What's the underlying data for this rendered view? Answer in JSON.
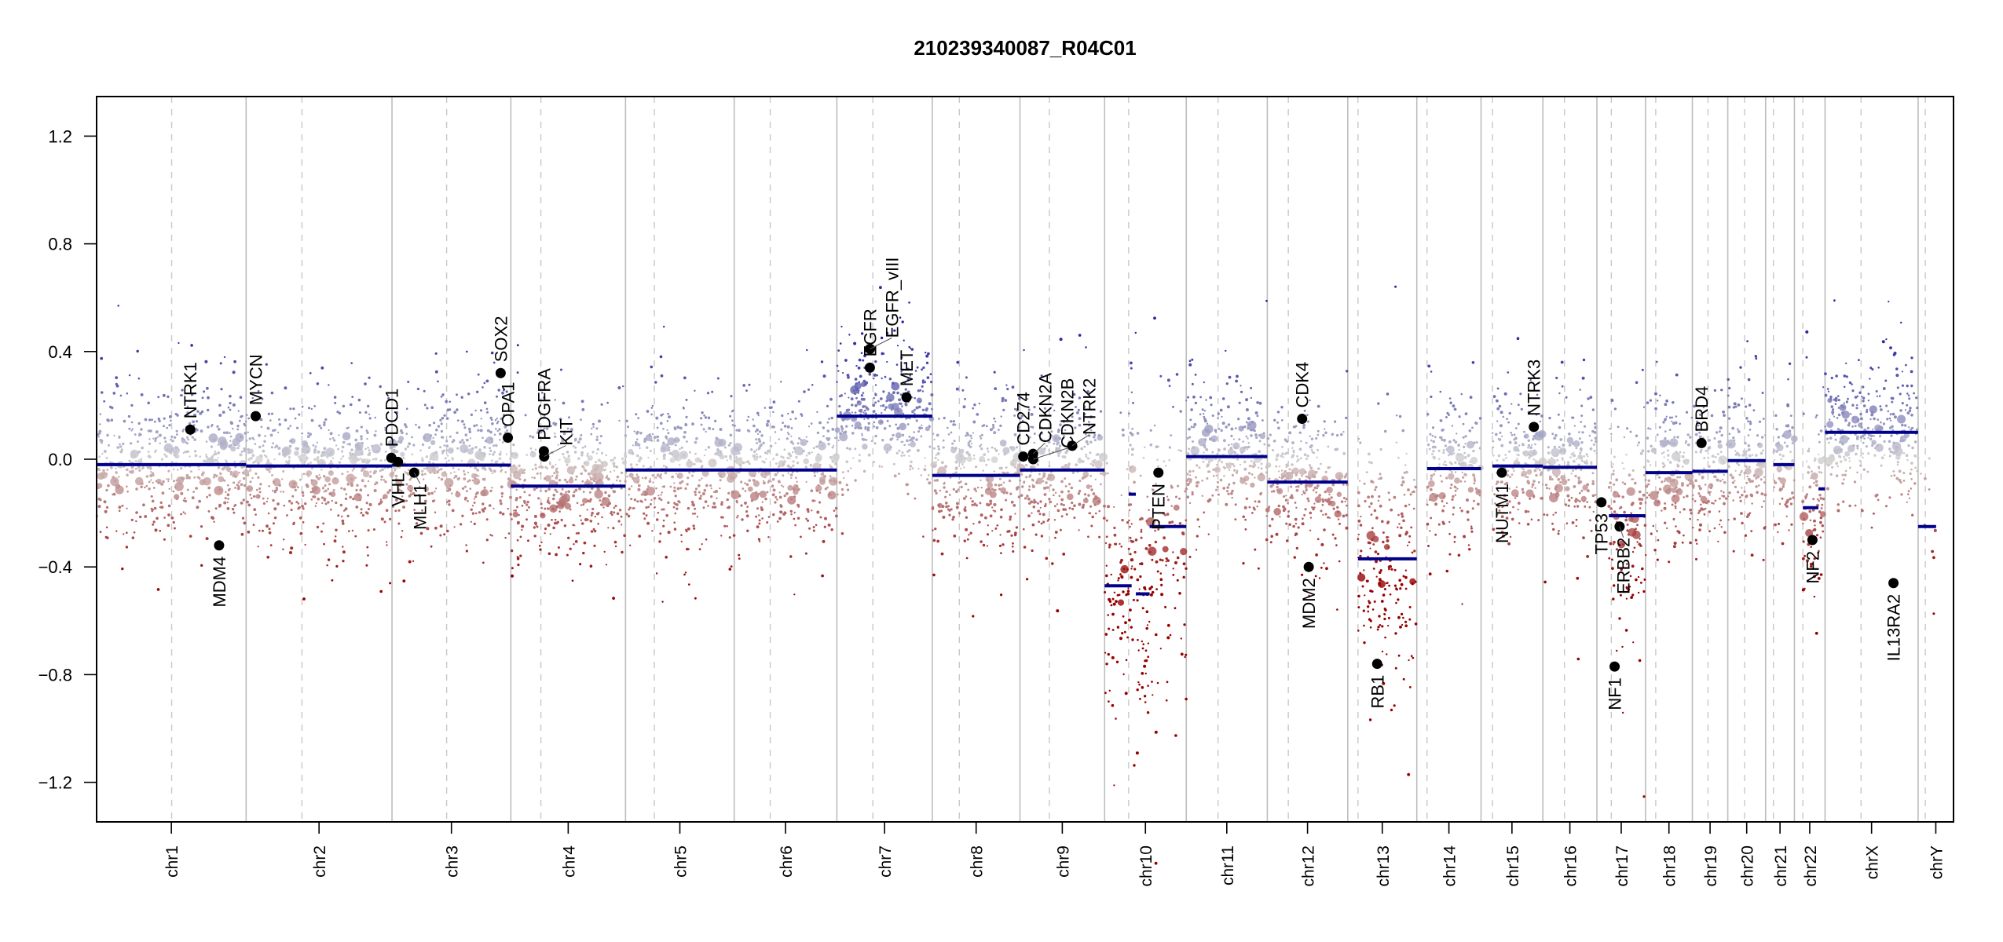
{
  "chart_data": {
    "type": "scatter",
    "title": "210239340087_R04C01",
    "xlabel": "",
    "ylabel": "",
    "ylim": [
      -1.35,
      1.35
    ],
    "yticks": [
      "-1.2",
      "-0.8",
      "-0.4",
      "0.0",
      "0.4",
      "0.8",
      "1.2"
    ],
    "grid": "chromosome boundaries (solid) and centromeres (dashed)",
    "colors": {
      "gain": "#3a3aa6",
      "neutral": "#d3d3d3",
      "loss": "#a00000",
      "segment": "#00008b",
      "gene": "#000000"
    },
    "chromosomes": [
      {
        "name": "chr1",
        "length": 249,
        "centromere": 125
      },
      {
        "name": "chr2",
        "length": 243,
        "centromere": 93
      },
      {
        "name": "chr3",
        "length": 198,
        "centromere": 91
      },
      {
        "name": "chr4",
        "length": 191,
        "centromere": 50
      },
      {
        "name": "chr5",
        "length": 181,
        "centromere": 48
      },
      {
        "name": "chr6",
        "length": 171,
        "centromere": 60
      },
      {
        "name": "chr7",
        "length": 159,
        "centromere": 60
      },
      {
        "name": "chr8",
        "length": 146,
        "centromere": 45
      },
      {
        "name": "chr9",
        "length": 141,
        "centromere": 49
      },
      {
        "name": "chr10",
        "length": 136,
        "centromere": 40
      },
      {
        "name": "chr11",
        "length": 135,
        "centromere": 53
      },
      {
        "name": "chr12",
        "length": 134,
        "centromere": 35
      },
      {
        "name": "chr13",
        "length": 115,
        "centromere": 17
      },
      {
        "name": "chr14",
        "length": 107,
        "centromere": 17
      },
      {
        "name": "chr15",
        "length": 103,
        "centromere": 19
      },
      {
        "name": "chr16",
        "length": 90,
        "centromere": 36
      },
      {
        "name": "chr17",
        "length": 81,
        "centromere": 24
      },
      {
        "name": "chr18",
        "length": 78,
        "centromere": 17
      },
      {
        "name": "chr19",
        "length": 59,
        "centromere": 26
      },
      {
        "name": "chr20",
        "length": 63,
        "centromere": 28
      },
      {
        "name": "chr21",
        "length": 48,
        "centromere": 13
      },
      {
        "name": "chr22",
        "length": 51,
        "centromere": 14
      },
      {
        "name": "chrX",
        "length": 155,
        "centromere": 60
      },
      {
        "name": "chrY",
        "length": 59,
        "centromere": 12
      }
    ],
    "segments": [
      {
        "chr": "chr1",
        "start": 0,
        "end": 249,
        "value": -0.02
      },
      {
        "chr": "chr2",
        "start": 0,
        "end": 243,
        "value": -0.025
      },
      {
        "chr": "chr3",
        "start": 0,
        "end": 198,
        "value": -0.022
      },
      {
        "chr": "chr4",
        "start": 0,
        "end": 191,
        "value": -0.1
      },
      {
        "chr": "chr5",
        "start": 0,
        "end": 181,
        "value": -0.04
      },
      {
        "chr": "chr6",
        "start": 0,
        "end": 171,
        "value": -0.04
      },
      {
        "chr": "chr7",
        "start": 0,
        "end": 159,
        "value": 0.16
      },
      {
        "chr": "chr8",
        "start": 0,
        "end": 146,
        "value": -0.06
      },
      {
        "chr": "chr9",
        "start": 0,
        "end": 141,
        "value": -0.04
      },
      {
        "chr": "chr10",
        "start": 0,
        "end": 45,
        "value": -0.47
      },
      {
        "chr": "chr10",
        "start": 40,
        "end": 52,
        "value": -0.13
      },
      {
        "chr": "chr10",
        "start": 52,
        "end": 75,
        "value": -0.5
      },
      {
        "chr": "chr10",
        "start": 75,
        "end": 136,
        "value": -0.25
      },
      {
        "chr": "chr11",
        "start": 0,
        "end": 135,
        "value": 0.01
      },
      {
        "chr": "chr12",
        "start": 0,
        "end": 134,
        "value": -0.085
      },
      {
        "chr": "chr13",
        "start": 17,
        "end": 115,
        "value": -0.37
      },
      {
        "chr": "chr14",
        "start": 17,
        "end": 107,
        "value": -0.035
      },
      {
        "chr": "chr15",
        "start": 19,
        "end": 103,
        "value": -0.025
      },
      {
        "chr": "chr16",
        "start": 0,
        "end": 90,
        "value": -0.03
      },
      {
        "chr": "chr17",
        "start": 20,
        "end": 81,
        "value": -0.21
      },
      {
        "chr": "chr18",
        "start": 0,
        "end": 78,
        "value": -0.05
      },
      {
        "chr": "chr19",
        "start": 0,
        "end": 59,
        "value": -0.045
      },
      {
        "chr": "chr20",
        "start": 0,
        "end": 63,
        "value": -0.005
      },
      {
        "chr": "chr21",
        "start": 13,
        "end": 48,
        "value": -0.02
      },
      {
        "chr": "chr22",
        "start": 14,
        "end": 40,
        "value": -0.18
      },
      {
        "chr": "chr22",
        "start": 40,
        "end": 51,
        "value": -0.11
      },
      {
        "chr": "chrX",
        "start": 0,
        "end": 155,
        "value": 0.1
      },
      {
        "chr": "chrY",
        "start": 0,
        "end": 30,
        "value": -0.25
      }
    ],
    "genes": [
      {
        "name": "NTRK1",
        "chr": "chr1",
        "pos": 156,
        "value": 0.11
      },
      {
        "name": "MDM4",
        "chr": "chr1",
        "pos": 204,
        "value": -0.32
      },
      {
        "name": "MYCN",
        "chr": "chr2",
        "pos": 16,
        "value": 0.16
      },
      {
        "name": "PDCD1",
        "chr": "chr2",
        "pos": 242,
        "value": 0.005
      },
      {
        "name": "VHL",
        "chr": "chr3",
        "pos": 10,
        "value": -0.01
      },
      {
        "name": "MLH1",
        "chr": "chr3",
        "pos": 37,
        "value": -0.05
      },
      {
        "name": "SOX2",
        "chr": "chr3",
        "pos": 181,
        "value": 0.32
      },
      {
        "name": "OPA1",
        "chr": "chr3",
        "pos": 193,
        "value": 0.08
      },
      {
        "name": "PDGFRA",
        "chr": "chr4",
        "pos": 55,
        "value": 0.03
      },
      {
        "name": "KIT",
        "chr": "chr4",
        "pos": 55.5,
        "value": 0.01
      },
      {
        "name": "EGFR",
        "chr": "chr7",
        "pos": 55,
        "value": 0.34
      },
      {
        "name": "EGFR_vIII",
        "chr": "chr7",
        "pos": 55.2,
        "value": 0.41
      },
      {
        "name": "MET",
        "chr": "chr7",
        "pos": 116,
        "value": 0.23
      },
      {
        "name": "CD274",
        "chr": "chr9",
        "pos": 5.5,
        "value": 0.01
      },
      {
        "name": "CDKN2A",
        "chr": "chr9",
        "pos": 21.9,
        "value": 0.02
      },
      {
        "name": "CDKN2B",
        "chr": "chr9",
        "pos": 22.0,
        "value": 0.0
      },
      {
        "name": "NTRK2",
        "chr": "chr9",
        "pos": 87,
        "value": 0.05
      },
      {
        "name": "PTEN",
        "chr": "chr10",
        "pos": 89.6,
        "value": -0.05
      },
      {
        "name": "CDK4",
        "chr": "chr12",
        "pos": 58,
        "value": 0.15
      },
      {
        "name": "MDM2",
        "chr": "chr12",
        "pos": 69,
        "value": -0.4
      },
      {
        "name": "RB1",
        "chr": "chr13",
        "pos": 49,
        "value": -0.76
      },
      {
        "name": "NUTM1",
        "chr": "chr15",
        "pos": 34.6,
        "value": -0.05
      },
      {
        "name": "NTRK3",
        "chr": "chr15",
        "pos": 88,
        "value": 0.12
      },
      {
        "name": "TP53",
        "chr": "chr17",
        "pos": 7.5,
        "value": -0.16
      },
      {
        "name": "NF1",
        "chr": "chr17",
        "pos": 29.5,
        "value": -0.77
      },
      {
        "name": "ERBB2",
        "chr": "chr17",
        "pos": 37.8,
        "value": -0.25
      },
      {
        "name": "BRD4",
        "chr": "chr19",
        "pos": 15.3,
        "value": 0.06
      },
      {
        "name": "NF2",
        "chr": "chr22",
        "pos": 30,
        "value": -0.3
      },
      {
        "name": "IL13RA2",
        "chr": "chrX",
        "pos": 114,
        "value": -0.46
      }
    ]
  }
}
